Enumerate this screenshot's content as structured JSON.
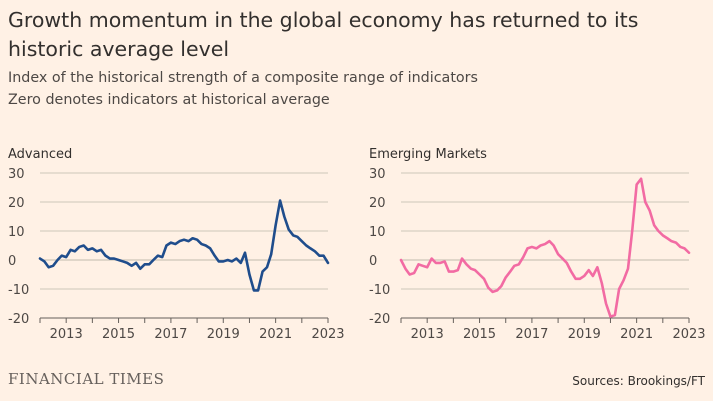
{
  "header": {
    "title": "Growth momentum in the global economy has returned to its historic average level",
    "subtitle_1": "Index of the historical strength of a composite range of indicators",
    "subtitle_2": "Zero denotes indicators at historical average"
  },
  "footer": {
    "logo": "FINANCIAL TIMES",
    "source": "Sources: Brookings/FT"
  },
  "colors": {
    "background": "#FFF1E5",
    "advanced_line": "#1F4D8C",
    "emerging_line": "#F26BA3",
    "grid": "#CEC6B9",
    "baseline": "#66605C"
  },
  "chart_data": [
    {
      "type": "line",
      "title": "Advanced",
      "xlabel": "",
      "ylabel": "",
      "xlim": [
        2012.0,
        2023.0
      ],
      "ylim": [
        -20,
        30
      ],
      "yticks": [
        -20,
        -10,
        0,
        10,
        20,
        30
      ],
      "xticks": [
        2013,
        2015,
        2017,
        2019,
        2021,
        2023
      ],
      "grid": true,
      "series": [
        {
          "name": "Advanced",
          "color": "#1F4D8C",
          "x": [
            2012.0,
            2012.17,
            2012.33,
            2012.5,
            2012.67,
            2012.83,
            2013.0,
            2013.17,
            2013.33,
            2013.5,
            2013.67,
            2013.83,
            2014.0,
            2014.17,
            2014.33,
            2014.5,
            2014.67,
            2014.83,
            2015.0,
            2015.17,
            2015.33,
            2015.5,
            2015.67,
            2015.83,
            2016.0,
            2016.17,
            2016.33,
            2016.5,
            2016.67,
            2016.83,
            2017.0,
            2017.17,
            2017.33,
            2017.5,
            2017.67,
            2017.83,
            2018.0,
            2018.17,
            2018.33,
            2018.5,
            2018.67,
            2018.83,
            2019.0,
            2019.17,
            2019.33,
            2019.5,
            2019.67,
            2019.83,
            2020.0,
            2020.17,
            2020.33,
            2020.5,
            2020.67,
            2020.83,
            2021.0,
            2021.17,
            2021.33,
            2021.5,
            2021.67,
            2021.83,
            2022.0,
            2022.17,
            2022.33,
            2022.5,
            2022.67,
            2022.83,
            2023.0
          ],
          "y": [
            0.5,
            -0.5,
            -2.5,
            -2.0,
            0.0,
            1.5,
            1.0,
            3.5,
            3.0,
            4.5,
            5.0,
            3.5,
            4.0,
            3.0,
            3.5,
            1.5,
            0.5,
            0.5,
            0.0,
            -0.5,
            -1.0,
            -2.0,
            -1.0,
            -3.0,
            -1.5,
            -1.5,
            0.0,
            1.5,
            1.0,
            5.0,
            6.0,
            5.5,
            6.5,
            7.0,
            6.5,
            7.5,
            7.0,
            5.5,
            5.0,
            4.0,
            1.5,
            -0.5,
            -0.5,
            0.0,
            -0.5,
            0.5,
            -1.0,
            2.5,
            -5.0,
            -10.5,
            -10.5,
            -4.0,
            -2.5,
            2.0,
            12.0,
            20.5,
            15.0,
            10.5,
            8.5,
            8.0,
            6.5,
            5.0,
            4.0,
            3.0,
            1.5,
            1.5,
            -1.0
          ]
        }
      ]
    },
    {
      "type": "line",
      "title": "Emerging Markets",
      "xlabel": "",
      "ylabel": "",
      "xlim": [
        2012.0,
        2023.0
      ],
      "ylim": [
        -20,
        30
      ],
      "yticks": [
        -20,
        -10,
        0,
        10,
        20,
        30
      ],
      "xticks": [
        2013,
        2015,
        2017,
        2019,
        2021,
        2023
      ],
      "grid": true,
      "series": [
        {
          "name": "Emerging Markets",
          "color": "#F26BA3",
          "x": [
            2012.0,
            2012.17,
            2012.33,
            2012.5,
            2012.67,
            2012.83,
            2013.0,
            2013.17,
            2013.33,
            2013.5,
            2013.67,
            2013.83,
            2014.0,
            2014.17,
            2014.33,
            2014.5,
            2014.67,
            2014.83,
            2015.0,
            2015.17,
            2015.33,
            2015.5,
            2015.67,
            2015.83,
            2016.0,
            2016.17,
            2016.33,
            2016.5,
            2016.67,
            2016.83,
            2017.0,
            2017.17,
            2017.33,
            2017.5,
            2017.67,
            2017.83,
            2018.0,
            2018.17,
            2018.33,
            2018.5,
            2018.67,
            2018.83,
            2019.0,
            2019.17,
            2019.33,
            2019.5,
            2019.67,
            2019.83,
            2020.0,
            2020.17,
            2020.33,
            2020.5,
            2020.67,
            2020.83,
            2021.0,
            2021.17,
            2021.33,
            2021.5,
            2021.67,
            2021.83,
            2022.0,
            2022.17,
            2022.33,
            2022.5,
            2022.67,
            2022.83,
            2023.0
          ],
          "y": [
            0.0,
            -3.0,
            -5.0,
            -4.5,
            -1.5,
            -2.0,
            -2.5,
            0.5,
            -1.0,
            -1.0,
            -0.5,
            -4.0,
            -4.0,
            -3.5,
            0.5,
            -1.5,
            -3.0,
            -3.5,
            -5.0,
            -6.5,
            -9.5,
            -11.0,
            -10.5,
            -9.0,
            -6.0,
            -4.0,
            -2.0,
            -1.5,
            1.0,
            4.0,
            4.5,
            4.0,
            5.0,
            5.5,
            6.5,
            5.0,
            2.0,
            0.5,
            -1.0,
            -4.0,
            -6.5,
            -6.5,
            -5.5,
            -3.5,
            -5.5,
            -2.5,
            -8.0,
            -15.0,
            -19.5,
            -19.0,
            -10.0,
            -7.0,
            -3.0,
            10.0,
            26.0,
            28.0,
            20.0,
            17.0,
            12.0,
            10.0,
            8.5,
            7.5,
            6.5,
            6.0,
            4.5,
            4.0,
            2.5
          ]
        }
      ]
    }
  ]
}
